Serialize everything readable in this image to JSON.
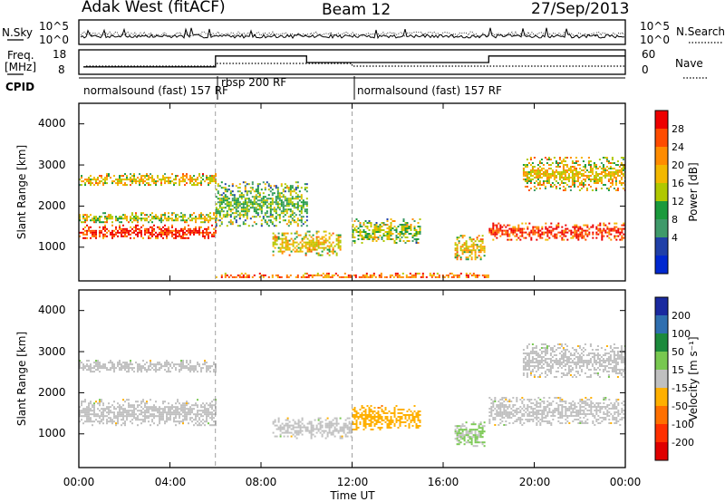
{
  "header": {
    "station": "Adak West (fitACF)",
    "beam": "Beam 12",
    "date": "27/Sep/2013"
  },
  "noise_panel": {
    "left_label": "N.Sky",
    "right_label": "N.Search",
    "left_ticks": [
      "10^5",
      "10^0"
    ],
    "right_ticks": [
      "10^5",
      "10^0"
    ]
  },
  "freq_panel": {
    "left_label_1": "Freq.",
    "left_label_2": "[MHz]",
    "right_label": "Nave",
    "left_ticks": [
      "18",
      "8"
    ],
    "right_ticks": [
      "60",
      "0"
    ],
    "freq_steps": [
      {
        "t_start": 0.2,
        "t_end": 6.0,
        "freq": 11.0
      },
      {
        "t_start": 6.0,
        "t_end": 10.0,
        "freq": 16.0
      },
      {
        "t_start": 10.0,
        "t_end": 12.0,
        "freq": 13.0
      },
      {
        "t_start": 12.0,
        "t_end": 18.0,
        "freq": 13.0
      },
      {
        "t_start": 18.0,
        "t_end": 24.0,
        "freq": 16.0
      }
    ]
  },
  "cpid": {
    "label": "CPID",
    "programs": [
      {
        "name": "normalsound (fast) 157 RF",
        "t_start": 0,
        "t_end": 6
      },
      {
        "name": "rbsp 200 RF",
        "t_start": 6,
        "t_end": 12
      },
      {
        "name": "normalsound (fast) 157 RF",
        "t_start": 12,
        "t_end": 24
      }
    ]
  },
  "power_panel": {
    "ylabel": "Slant Range [km]",
    "colorbar_label": "Power [dB]",
    "colorbar_ticks": [
      "28",
      "24",
      "20",
      "16",
      "12",
      "8",
      "4"
    ],
    "colorbar_colors": [
      "#ee0000",
      "#ff4c00",
      "#ff8c00",
      "#f2b800",
      "#b0c800",
      "#1a9a3c",
      "#3f9a6a",
      "#2040a8",
      "#0028d0"
    ]
  },
  "velocity_panel": {
    "ylabel": "Slant Range [km]",
    "colorbar_label": "Velocity [m s⁻¹]",
    "colorbar_ticks": [
      "200",
      "100",
      "50",
      "15",
      "-15",
      "-50",
      "-100",
      "-200"
    ],
    "colorbar_colors": [
      "#1a2aa0",
      "#2f6fb0",
      "#1c8a3c",
      "#78c850",
      "#c0c0c0",
      "#ffb000",
      "#ff7000",
      "#ff3000",
      "#e00000"
    ]
  },
  "range_ticks": [
    "4000",
    "3000",
    "2000",
    "1000"
  ],
  "time_ticks": [
    "00:00",
    "04:00",
    "08:00",
    "12:00",
    "16:00",
    "20:00",
    "00:00"
  ],
  "xlabel": "Time UT",
  "chart_data": {
    "type": "heatmap",
    "title": "Adak West (fitACF)",
    "xlabel": "Time UT",
    "ylabel": "Slant Range [km]",
    "xlim": [
      "00:00",
      "24:00"
    ],
    "ylim": [
      180,
      4500
    ],
    "panels": [
      {
        "name": "Power [dB]",
        "zlim": [
          0,
          30
        ],
        "features": [
          {
            "t_start": 0.0,
            "t_end": 6.0,
            "r_start": 1200,
            "r_end": 1550,
            "value": 28
          },
          {
            "t_start": 0.0,
            "t_end": 6.0,
            "r_start": 1600,
            "r_end": 1850,
            "value": 16
          },
          {
            "t_start": 0.0,
            "t_end": 6.0,
            "r_start": 2500,
            "r_end": 2800,
            "value": 18
          },
          {
            "t_start": 6.0,
            "t_end": 10.0,
            "r_start": 1500,
            "r_end": 2600,
            "value": 12
          },
          {
            "t_start": 8.5,
            "t_end": 11.5,
            "r_start": 800,
            "r_end": 1400,
            "value": 18
          },
          {
            "t_start": 12.0,
            "t_end": 15.0,
            "r_start": 1100,
            "r_end": 1700,
            "value": 14
          },
          {
            "t_start": 16.5,
            "t_end": 17.8,
            "r_start": 700,
            "r_end": 1300,
            "value": 18
          },
          {
            "t_start": 18.0,
            "t_end": 24.0,
            "r_start": 1200,
            "r_end": 1600,
            "value": 28
          },
          {
            "t_start": 19.5,
            "t_end": 24.0,
            "r_start": 2400,
            "r_end": 3200,
            "value": 18
          },
          {
            "t_start": 6.0,
            "t_end": 18.0,
            "r_start": 250,
            "r_end": 380,
            "value": 24
          }
        ]
      },
      {
        "name": "Velocity [m s⁻¹]",
        "zlim": [
          -200,
          200
        ],
        "features": [
          {
            "t_start": 0.0,
            "t_end": 6.0,
            "r_start": 1200,
            "r_end": 1850,
            "value": 0
          },
          {
            "t_start": 0.0,
            "t_end": 6.0,
            "r_start": 2500,
            "r_end": 2800,
            "value": 0
          },
          {
            "t_start": 8.5,
            "t_end": 12.0,
            "r_start": 900,
            "r_end": 1400,
            "value": 0
          },
          {
            "t_start": 12.0,
            "t_end": 15.0,
            "r_start": 1100,
            "r_end": 1700,
            "value": -50
          },
          {
            "t_start": 16.5,
            "t_end": 17.8,
            "r_start": 700,
            "r_end": 1300,
            "value": 30
          },
          {
            "t_start": 18.0,
            "t_end": 24.0,
            "r_start": 1200,
            "r_end": 1900,
            "value": 0
          },
          {
            "t_start": 19.5,
            "t_end": 24.0,
            "r_start": 2400,
            "r_end": 3200,
            "value": 0
          }
        ]
      }
    ]
  }
}
